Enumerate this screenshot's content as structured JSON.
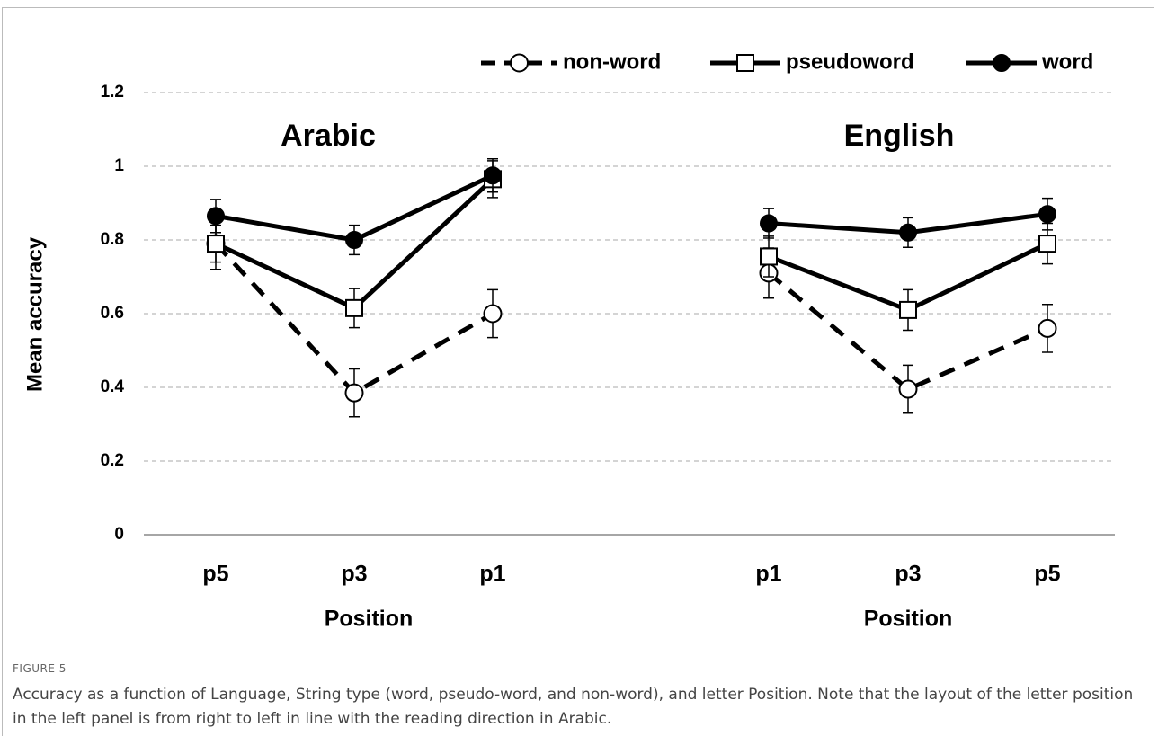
{
  "figure": {
    "label": "FIGURE 5",
    "caption": "Accuracy as a function of Language, String type (word, pseudo-word, and non-word), and letter Position. Note that the layout of the letter position in the left panel is from right to left in line with the reading direction in Arabic."
  },
  "chart_data": [
    {
      "type": "line",
      "title": "Arabic",
      "xlabel": "Position",
      "ylabel": "Mean accuracy",
      "categories": [
        "p5",
        "p3",
        "p1"
      ],
      "ylim": [
        0,
        1.2
      ],
      "yticks": [
        0,
        0.2,
        0.4,
        0.6,
        0.8,
        1,
        1.2
      ],
      "grid": true,
      "legend": "top-right",
      "series": [
        {
          "name": "non-word",
          "color": "#000000",
          "dash": true,
          "marker": "open-circle",
          "values": [
            0.79,
            0.385,
            0.6
          ],
          "errors": [
            0.07,
            0.065,
            0.065
          ]
        },
        {
          "name": "pseudoword",
          "color": "#000000",
          "dash": false,
          "marker": "open-square",
          "values": [
            0.79,
            0.615,
            0.965
          ],
          "errors": [
            0.05,
            0.053,
            0.05
          ]
        },
        {
          "name": "word",
          "color": "#000000",
          "dash": false,
          "marker": "filled-circle",
          "values": [
            0.865,
            0.8,
            0.975
          ],
          "errors": [
            0.045,
            0.04,
            0.045
          ]
        }
      ]
    },
    {
      "type": "line",
      "title": "English",
      "xlabel": "Position",
      "categories": [
        "p1",
        "p3",
        "p5"
      ],
      "ylim": [
        0,
        1.2
      ],
      "series": [
        {
          "color": "#000000",
          "dash": true,
          "marker": "open-circle",
          "values": [
            0.71,
            0.395,
            0.56
          ],
          "errors": [
            0.068,
            0.065,
            0.065
          ]
        },
        {
          "color": "#000000",
          "dash": false,
          "marker": "open-square",
          "values": [
            0.755,
            0.61,
            0.79
          ],
          "errors": [
            0.055,
            0.055,
            0.055
          ]
        },
        {
          "color": "#000000",
          "dash": false,
          "marker": "filled-circle",
          "values": [
            0.845,
            0.82,
            0.87
          ],
          "errors": [
            0.04,
            0.04,
            0.043
          ]
        }
      ]
    }
  ]
}
